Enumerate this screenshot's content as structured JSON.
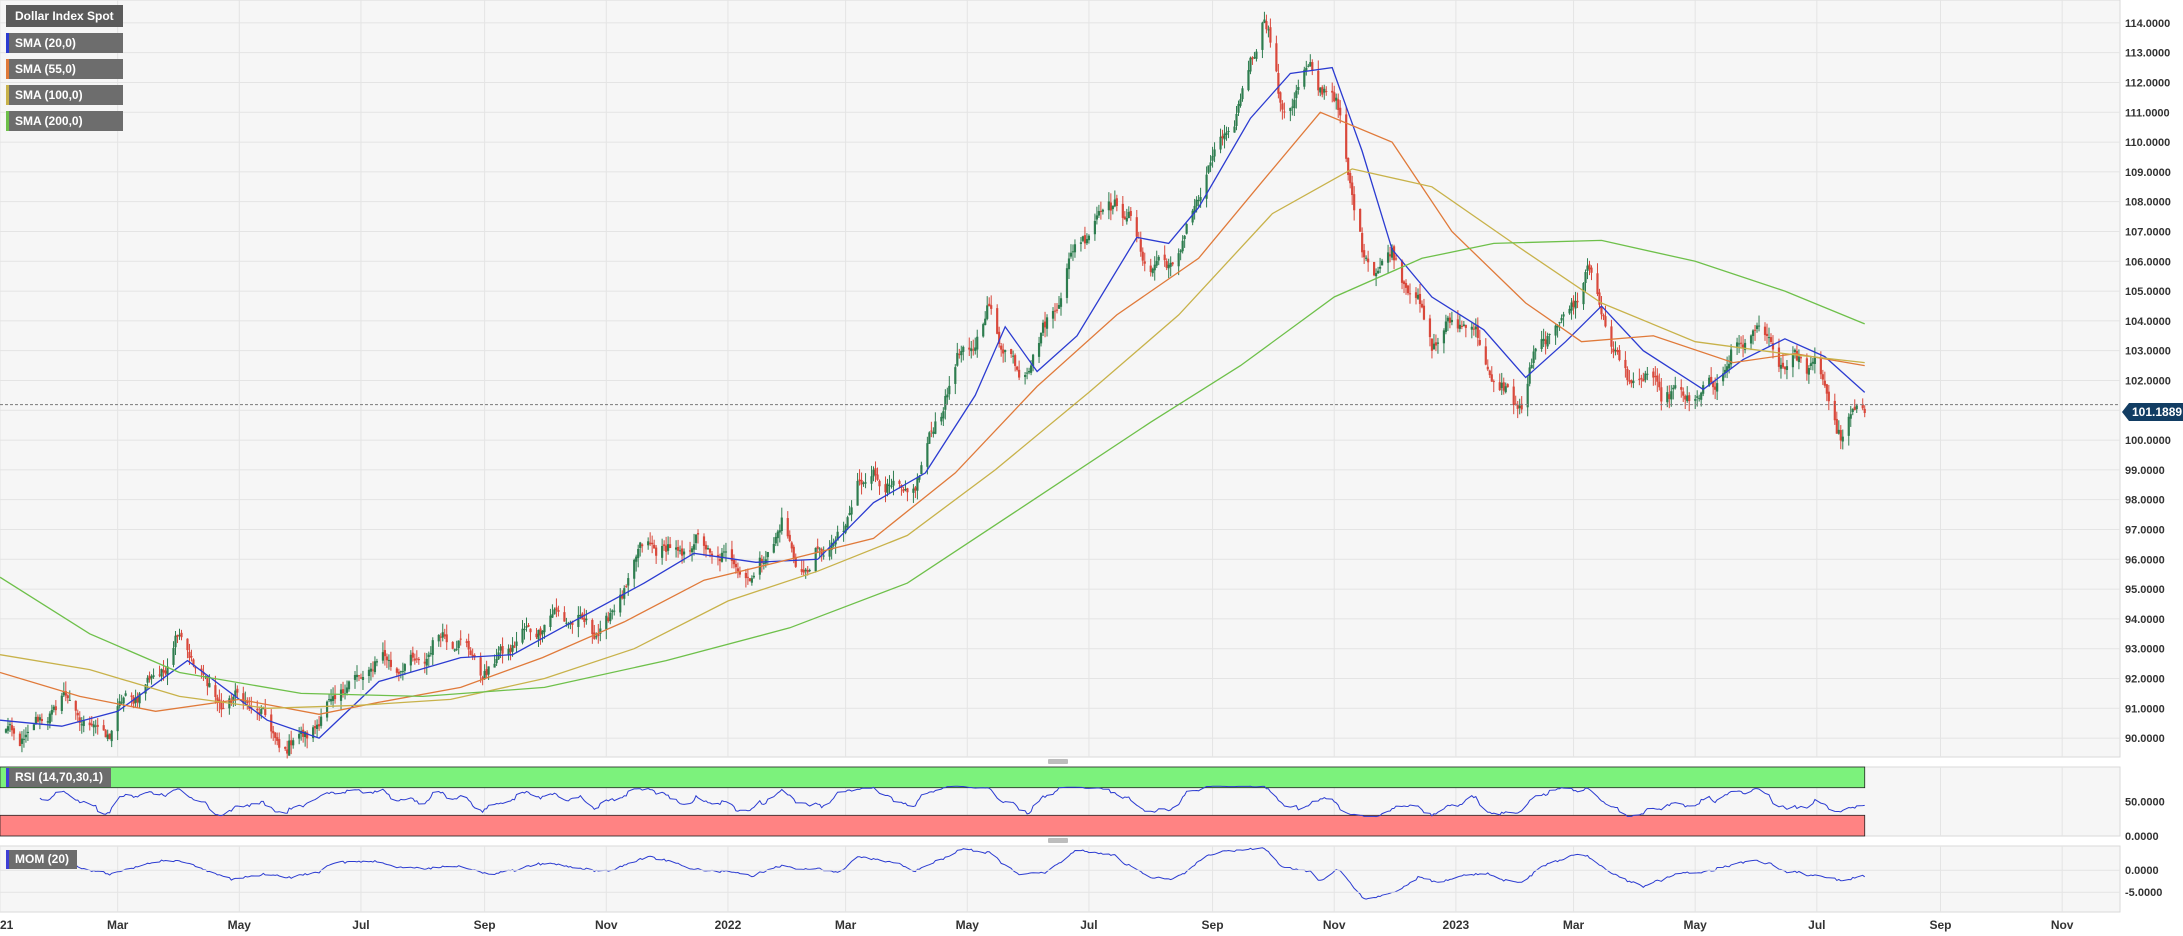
{
  "chart_data": {
    "type": "candlestick",
    "title": "Dollar Index Spot",
    "y_axis": {
      "min": 89.5,
      "max": 114.7,
      "ticks": [
        "114.0000",
        "113.0000",
        "112.0000",
        "111.0000",
        "110.0000",
        "109.0000",
        "108.0000",
        "107.0000",
        "106.0000",
        "105.0000",
        "104.0000",
        "103.0000",
        "102.0000",
        "101.0000",
        "100.0000",
        "99.0000",
        "98.0000",
        "97.0000",
        "96.0000",
        "95.0000",
        "94.0000",
        "93.0000",
        "92.0000",
        "91.0000",
        "90.0000"
      ],
      "position": "right"
    },
    "x_axis": {
      "labels": [
        "2021",
        "Mar",
        "May",
        "Jul",
        "Sep",
        "Nov",
        "2022",
        "Mar",
        "May",
        "Jul",
        "Sep",
        "Nov",
        "2023",
        "Mar",
        "May",
        "Jul",
        "Sep",
        "Nov"
      ],
      "start": "2021-01-01",
      "end": "2023-11-30"
    },
    "last_price": "101.1889",
    "legend": [
      {
        "label": "SMA (20,0)",
        "color": "#2b3bd1"
      },
      {
        "label": "SMA (55,0)",
        "color": "#e07a3a"
      },
      {
        "label": "SMA (100,0)",
        "color": "#c8b24a"
      },
      {
        "label": "SMA (200,0)",
        "color": "#6ec04a"
      }
    ],
    "anchors": [
      [
        "2021-01-01",
        89.9
      ],
      [
        "2021-01-20",
        90.6
      ],
      [
        "2021-02-05",
        91.1
      ],
      [
        "2021-02-25",
        90.2
      ],
      [
        "2021-03-15",
        91.9
      ],
      [
        "2021-03-31",
        93.2
      ],
      [
        "2021-04-15",
        91.8
      ],
      [
        "2021-05-05",
        91.0
      ],
      [
        "2021-05-25",
        89.9
      ],
      [
        "2021-06-10",
        90.2
      ],
      [
        "2021-06-20",
        91.9
      ],
      [
        "2021-07-10",
        92.3
      ],
      [
        "2021-07-31",
        92.8
      ],
      [
        "2021-08-20",
        93.3
      ],
      [
        "2021-09-05",
        92.2
      ],
      [
        "2021-09-30",
        94.2
      ],
      [
        "2021-10-20",
        93.6
      ],
      [
        "2021-11-05",
        94.3
      ],
      [
        "2021-11-24",
        96.7
      ],
      [
        "2021-12-15",
        96.2
      ],
      [
        "2022-01-05",
        96.2
      ],
      [
        "2022-01-14",
        95.0
      ],
      [
        "2022-01-28",
        97.2
      ],
      [
        "2022-02-10",
        95.6
      ],
      [
        "2022-02-28",
        96.7
      ],
      [
        "2022-03-07",
        99.1
      ],
      [
        "2022-03-30",
        97.9
      ],
      [
        "2022-04-15",
        100.6
      ],
      [
        "2022-05-12",
        104.6
      ],
      [
        "2022-05-27",
        101.7
      ],
      [
        "2022-06-15",
        105.0
      ],
      [
        "2022-07-14",
        108.5
      ],
      [
        "2022-08-01",
        105.4
      ],
      [
        "2022-08-15",
        106.6
      ],
      [
        "2022-09-05",
        109.7
      ],
      [
        "2022-09-27",
        114.2
      ],
      [
        "2022-10-05",
        110.8
      ],
      [
        "2022-10-20",
        112.8
      ],
      [
        "2022-11-04",
        110.5
      ],
      [
        "2022-11-15",
        106.4
      ],
      [
        "2022-11-30",
        105.9
      ],
      [
        "2022-12-20",
        103.7
      ],
      [
        "2023-01-06",
        103.8
      ],
      [
        "2023-01-26",
        101.7
      ],
      [
        "2023-02-03",
        101.0
      ],
      [
        "2023-02-15",
        103.6
      ],
      [
        "2023-03-08",
        105.4
      ],
      [
        "2023-03-24",
        102.7
      ],
      [
        "2023-04-14",
        101.4
      ],
      [
        "2023-04-30",
        101.8
      ],
      [
        "2023-05-11",
        101.5
      ],
      [
        "2023-05-31",
        104.2
      ],
      [
        "2023-06-15",
        102.2
      ],
      [
        "2023-06-30",
        103.0
      ],
      [
        "2023-07-14",
        99.8
      ],
      [
        "2023-07-25",
        101.2
      ]
    ],
    "sma": {
      "20": [
        [
          "2021-01-01",
          90.6
        ],
        [
          "2021-02-01",
          90.4
        ],
        [
          "2021-03-01",
          90.9
        ],
        [
          "2021-04-05",
          92.6
        ],
        [
          "2021-05-15",
          90.6
        ],
        [
          "2021-06-10",
          90.0
        ],
        [
          "2021-07-10",
          91.9
        ],
        [
          "2021-08-20",
          92.7
        ],
        [
          "2021-09-15",
          92.8
        ],
        [
          "2021-10-15",
          93.9
        ],
        [
          "2021-11-20",
          95.2
        ],
        [
          "2021-12-15",
          96.2
        ],
        [
          "2022-01-15",
          95.9
        ],
        [
          "2022-02-15",
          96.0
        ],
        [
          "2022-03-15",
          97.9
        ],
        [
          "2022-04-10",
          98.9
        ],
        [
          "2022-05-05",
          101.5
        ],
        [
          "2022-05-20",
          103.8
        ],
        [
          "2022-06-05",
          102.3
        ],
        [
          "2022-06-25",
          103.5
        ],
        [
          "2022-07-25",
          106.8
        ],
        [
          "2022-08-10",
          106.6
        ],
        [
          "2022-08-25",
          107.8
        ],
        [
          "2022-09-20",
          110.8
        ],
        [
          "2022-10-10",
          112.3
        ],
        [
          "2022-10-31",
          112.5
        ],
        [
          "2022-11-15",
          109.7
        ],
        [
          "2022-11-30",
          106.4
        ],
        [
          "2022-12-20",
          104.8
        ],
        [
          "2023-01-15",
          103.7
        ],
        [
          "2023-02-05",
          102.1
        ],
        [
          "2023-02-25",
          103.3
        ],
        [
          "2023-03-15",
          104.5
        ],
        [
          "2023-04-05",
          103.0
        ],
        [
          "2023-05-05",
          101.7
        ],
        [
          "2023-05-25",
          102.7
        ],
        [
          "2023-06-15",
          103.4
        ],
        [
          "2023-07-05",
          102.8
        ],
        [
          "2023-07-25",
          101.6
        ]
      ],
      "55": [
        [
          "2021-01-01",
          92.2
        ],
        [
          "2021-02-10",
          91.4
        ],
        [
          "2021-03-20",
          90.9
        ],
        [
          "2021-05-01",
          91.3
        ],
        [
          "2021-06-10",
          90.8
        ],
        [
          "2021-07-10",
          91.2
        ],
        [
          "2021-08-20",
          91.7
        ],
        [
          "2021-09-30",
          92.7
        ],
        [
          "2021-11-10",
          93.9
        ],
        [
          "2021-12-20",
          95.3
        ],
        [
          "2022-02-01",
          96.0
        ],
        [
          "2022-03-15",
          96.7
        ],
        [
          "2022-04-25",
          98.9
        ],
        [
          "2022-06-05",
          101.8
        ],
        [
          "2022-07-15",
          104.2
        ],
        [
          "2022-08-25",
          106.1
        ],
        [
          "2022-09-25",
          108.6
        ],
        [
          "2022-10-25",
          111.0
        ],
        [
          "2022-11-30",
          110.0
        ],
        [
          "2022-12-30",
          107.0
        ],
        [
          "2023-02-05",
          104.6
        ],
        [
          "2023-03-05",
          103.3
        ],
        [
          "2023-04-10",
          103.5
        ],
        [
          "2023-05-20",
          102.6
        ],
        [
          "2023-06-20",
          102.9
        ],
        [
          "2023-07-25",
          102.5
        ]
      ],
      "100": [
        [
          "2021-01-01",
          92.8
        ],
        [
          "2021-02-15",
          92.3
        ],
        [
          "2021-04-01",
          91.4
        ],
        [
          "2021-05-15",
          91.0
        ],
        [
          "2021-06-30",
          91.1
        ],
        [
          "2021-08-15",
          91.3
        ],
        [
          "2021-10-01",
          92.0
        ],
        [
          "2021-11-15",
          93.0
        ],
        [
          "2022-01-01",
          94.6
        ],
        [
          "2022-02-15",
          95.6
        ],
        [
          "2022-04-01",
          96.8
        ],
        [
          "2022-05-15",
          99.0
        ],
        [
          "2022-07-01",
          101.6
        ],
        [
          "2022-08-15",
          104.2
        ],
        [
          "2022-10-01",
          107.6
        ],
        [
          "2022-11-10",
          109.1
        ],
        [
          "2022-12-20",
          108.5
        ],
        [
          "2023-02-01",
          106.5
        ],
        [
          "2023-03-15",
          104.6
        ],
        [
          "2023-05-01",
          103.3
        ],
        [
          "2023-06-15",
          102.9
        ],
        [
          "2023-07-25",
          102.6
        ]
      ],
      "200": [
        [
          "2021-01-01",
          95.4
        ],
        [
          "2021-02-15",
          93.5
        ],
        [
          "2021-04-01",
          92.2
        ],
        [
          "2021-06-01",
          91.5
        ],
        [
          "2021-08-01",
          91.4
        ],
        [
          "2021-10-01",
          91.7
        ],
        [
          "2021-12-01",
          92.6
        ],
        [
          "2022-02-01",
          93.7
        ],
        [
          "2022-04-01",
          95.2
        ],
        [
          "2022-06-01",
          97.9
        ],
        [
          "2022-08-01",
          100.6
        ],
        [
          "2022-09-15",
          102.5
        ],
        [
          "2022-11-01",
          104.8
        ],
        [
          "2022-12-15",
          106.1
        ],
        [
          "2023-01-20",
          106.6
        ],
        [
          "2023-03-15",
          106.7
        ],
        [
          "2023-05-01",
          106.0
        ],
        [
          "2023-06-15",
          105.0
        ],
        [
          "2023-07-25",
          103.9
        ]
      ]
    },
    "rsi": {
      "label": "RSI (14,70,30,1)",
      "ticks": [
        "50.0000",
        "0.0000"
      ],
      "range": [
        0,
        100
      ],
      "overbought": 70,
      "oversold": 30
    },
    "mom": {
      "label": "MOM (20)",
      "ticks": [
        "0.0000",
        "-5.0000"
      ],
      "range": [
        -9.5,
        5.5
      ]
    }
  }
}
